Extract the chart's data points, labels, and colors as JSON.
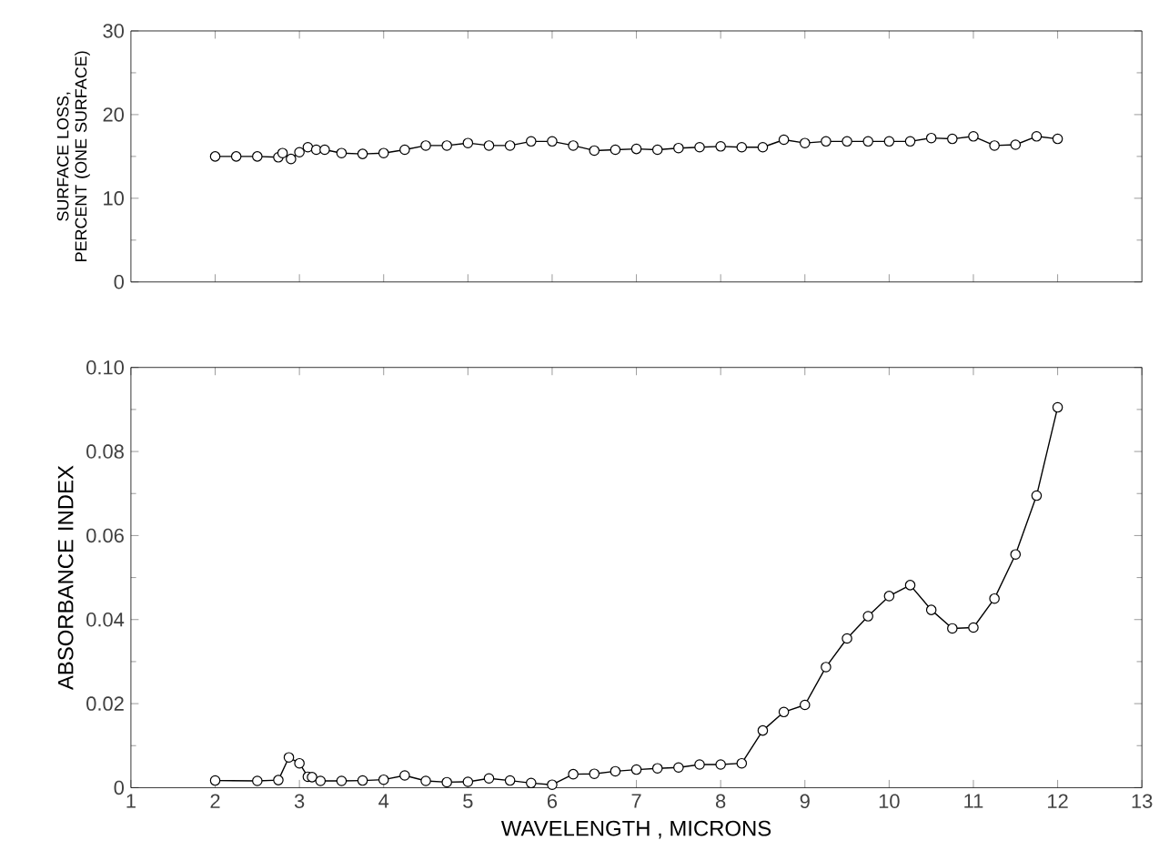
{
  "chart_data": [
    {
      "type": "line",
      "ylabel": "SURFACE LOSS, PERCENT (ONE SURFACE)",
      "xlim": [
        1,
        13
      ],
      "ylim": [
        0,
        30
      ],
      "yticks": [
        0,
        10,
        20,
        30
      ],
      "xticks": [
        {
          "value": 2,
          "label": null
        },
        {
          "value": 3,
          "label": null
        },
        {
          "value": 4,
          "label": null
        },
        {
          "value": 5,
          "label": null
        },
        {
          "value": 6,
          "label": null
        },
        {
          "value": 7,
          "label": null
        },
        {
          "value": 8,
          "label": null
        },
        {
          "value": 9,
          "label": null
        },
        {
          "value": 10,
          "label": null
        },
        {
          "value": 11,
          "label": null
        },
        {
          "value": 12,
          "label": null
        }
      ],
      "tick_labels": "y",
      "marker": "circle",
      "line_style": "solid",
      "series": [
        {
          "color": "#000000",
          "x": [
            2,
            2.25,
            2.5,
            2.75,
            2.8,
            2.9,
            3.0,
            3.1,
            3.2,
            3.3,
            3.5,
            3.75,
            4,
            4.25,
            4.5,
            4.75,
            5,
            5.25,
            5.5,
            5.75,
            6,
            6.25,
            6.5,
            6.75,
            7,
            7.25,
            7.5,
            7.75,
            8,
            8.25,
            8.5,
            8.75,
            9,
            9.25,
            9.5,
            9.75,
            10,
            10.25,
            10.5,
            10.75,
            11,
            11.25,
            11.5,
            11.75,
            12
          ],
          "values": [
            15.0,
            15.0,
            15.0,
            14.9,
            15.4,
            14.7,
            15.5,
            16.1,
            15.8,
            15.8,
            15.4,
            15.3,
            15.4,
            15.8,
            16.3,
            16.3,
            16.6,
            16.3,
            16.3,
            16.8,
            16.8,
            16.3,
            15.7,
            15.8,
            15.9,
            15.8,
            16.0,
            16.1,
            16.2,
            16.1,
            16.1,
            17.0,
            16.6,
            16.8,
            16.8,
            16.8,
            16.8,
            16.8,
            17.2,
            17.1,
            17.4,
            16.3,
            16.4,
            17.4,
            17.1
          ]
        }
      ]
    },
    {
      "type": "line",
      "xlabel": "WAVELENGTH , MICRONS",
      "ylabel": "ABSORBANCE INDEX",
      "xlim": [
        1,
        13
      ],
      "ylim": [
        0,
        0.1
      ],
      "xticks": [
        1,
        2,
        3,
        4,
        5,
        6,
        7,
        8,
        9,
        10,
        11,
        12,
        13
      ],
      "yticks": [
        0,
        0.02,
        0.04,
        0.06,
        0.08,
        {
          "value": 0.1,
          "label": "0.10"
        }
      ],
      "marker": "circle",
      "line_style": "solid",
      "series": [
        {
          "color": "#000000",
          "x": [
            2,
            2.5,
            2.75,
            2.875,
            3.0,
            3.1,
            3.15,
            3.25,
            3.5,
            3.75,
            4,
            4.25,
            4.5,
            4.75,
            5,
            5.25,
            5.5,
            5.75,
            6,
            6.25,
            6.5,
            6.75,
            7,
            7.25,
            7.5,
            7.75,
            8,
            8.25,
            8.5,
            8.75,
            9,
            9.25,
            9.5,
            9.75,
            10,
            10.25,
            10.5,
            10.75,
            11,
            11.25,
            11.5,
            11.75,
            12
          ],
          "values": [
            0.0017,
            0.0016,
            0.0018,
            0.0072,
            0.0058,
            0.0026,
            0.0025,
            0.0016,
            0.0016,
            0.0017,
            0.0019,
            0.0029,
            0.0016,
            0.0013,
            0.0014,
            0.0022,
            0.0017,
            0.0011,
            0.0007,
            0.0032,
            0.0033,
            0.0039,
            0.0043,
            0.0046,
            0.0048,
            0.0055,
            0.0055,
            0.0058,
            0.0136,
            0.018,
            0.0197,
            0.0287,
            0.0355,
            0.0408,
            0.0456,
            0.0482,
            0.0423,
            0.0379,
            0.0381,
            0.045,
            0.0555,
            0.0695,
            0.0905
          ]
        }
      ]
    }
  ]
}
